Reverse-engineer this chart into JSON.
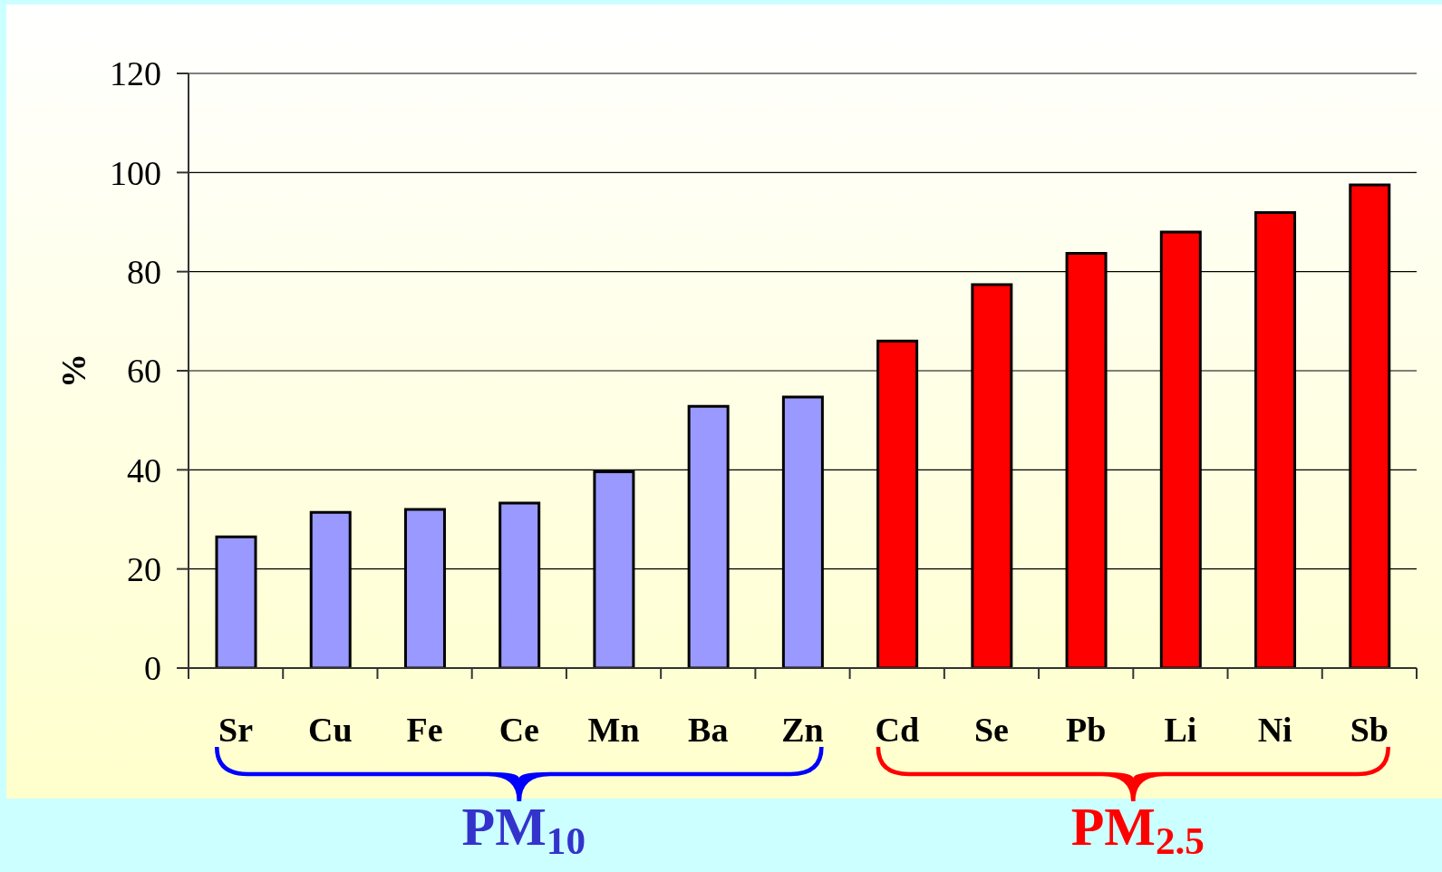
{
  "chart_data": {
    "type": "bar",
    "ylabel": "%",
    "categories": [
      "Sr",
      "Cu",
      "Fe",
      "Ce",
      "Mn",
      "Ba",
      "Zn",
      "Cd",
      "Se",
      "Pb",
      "Li",
      "Ni",
      "Sb"
    ],
    "series": [
      {
        "name": "PM$_{10}$",
        "color": "#9999ff",
        "values": [
          26.5,
          31.4,
          32.0,
          33.3,
          39.6,
          52.8,
          54.7,
          null,
          null,
          null,
          null,
          null,
          null
        ]
      },
      {
        "name": "PM$_{2.5}$",
        "color": "#ff0000",
        "values": [
          null,
          null,
          null,
          null,
          null,
          null,
          null,
          66.0,
          77.4,
          83.7,
          88.0,
          91.9,
          97.5
        ]
      }
    ],
    "ylim": [
      0,
      120
    ],
    "yticks": [
      0,
      20,
      40,
      60,
      80,
      100,
      120
    ],
    "grid": "y"
  }
}
